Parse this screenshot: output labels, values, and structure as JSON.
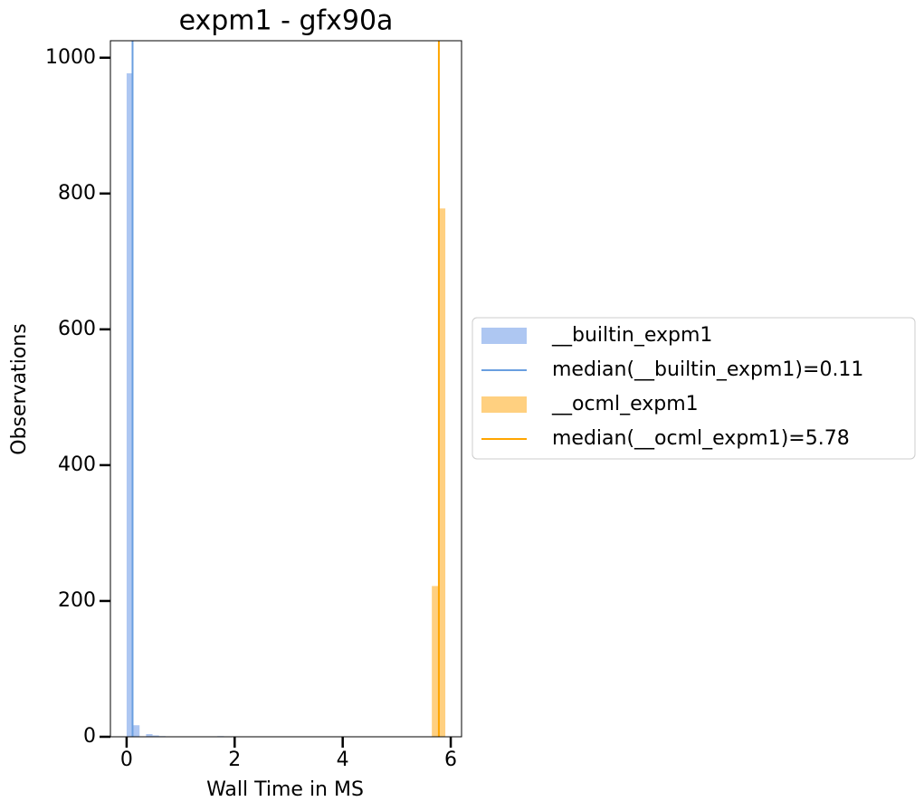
{
  "chart_data": {
    "type": "histogram",
    "title": "expm1 - gfx90a",
    "xlabel": "Wall Time in MS",
    "ylabel": "Observations",
    "xlim": [
      -0.3,
      6.2
    ],
    "ylim": [
      0,
      1025
    ],
    "xticks": [
      0,
      2,
      4,
      6
    ],
    "yticks": [
      0,
      200,
      400,
      600,
      800,
      1000
    ],
    "legend_loc": "outside right",
    "series": [
      {
        "name": "__builtin_expm1",
        "color": "#aec7f2",
        "bins": [
          0,
          0.12,
          0.24,
          0.36,
          0.48,
          0.6,
          0.72,
          0.84,
          0.96,
          1.08,
          1.2,
          1.32,
          1.44,
          1.56,
          1.68,
          1.8
        ],
        "values": [
          977,
          17,
          0,
          4,
          2,
          1,
          0,
          0,
          0,
          0,
          0,
          0,
          0,
          0,
          1
        ],
        "median": {
          "value": 0.11,
          "label": "median(__builtin_expm1)=0.11",
          "color": "#6a9fe0"
        }
      },
      {
        "name": "__ocml_expm1",
        "color": "#ffd080",
        "bins": [
          5.65,
          5.775,
          5.9
        ],
        "values": [
          222,
          778
        ],
        "median": {
          "value": 5.78,
          "label": "median(__ocml_expm1)=5.78",
          "color": "#ffa500"
        }
      }
    ]
  }
}
